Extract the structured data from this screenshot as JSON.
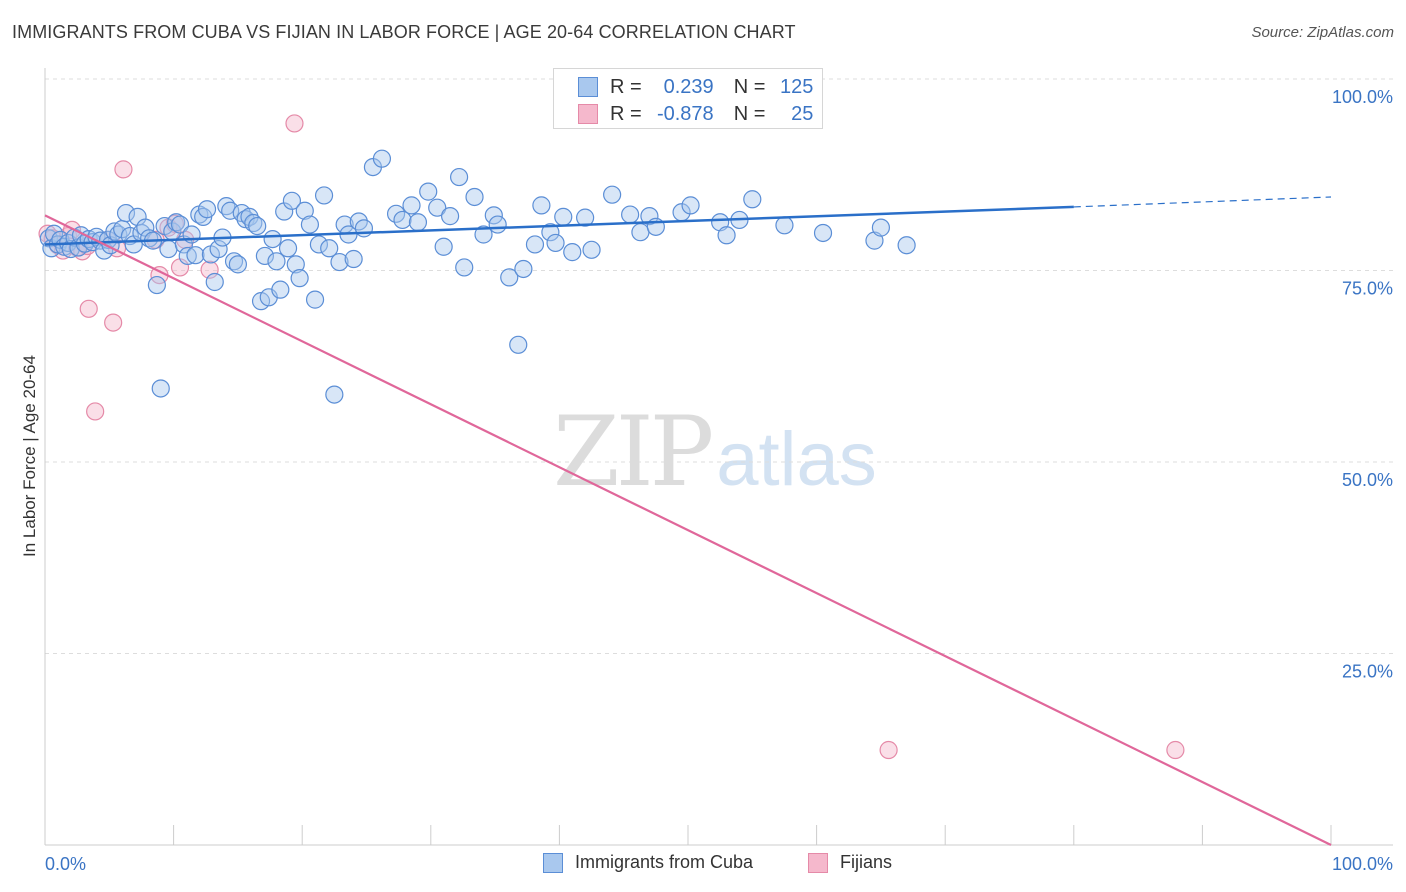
{
  "title": "IMMIGRANTS FROM CUBA VS FIJIAN IN LABOR FORCE | AGE 20-64 CORRELATION CHART",
  "source": "Source: ZipAtlas.com",
  "watermark": {
    "zip": "ZIP",
    "atlas": "atlas"
  },
  "colors": {
    "blue_fill": "#a9c8ee",
    "blue_stroke": "#5b8ed6",
    "blue_line": "#2a6fc9",
    "pink_fill": "#f5b8cc",
    "pink_stroke": "#e58aa8",
    "pink_line": "#e0679a",
    "tick_label": "#3a74c4",
    "grid": "#dddddd"
  },
  "legend": {
    "rows": [
      {
        "r_label": "R =",
        "r_value": "0.239",
        "n_label": "N =",
        "n_value": "125"
      },
      {
        "r_label": "R =",
        "r_value": "-0.878",
        "n_label": "N =",
        "n_value": "25"
      }
    ]
  },
  "bottom_legend": {
    "items": [
      {
        "label": "Immigrants from Cuba"
      },
      {
        "label": "Fijians"
      }
    ]
  },
  "chart_data": {
    "type": "scatter",
    "title": "IMMIGRANTS FROM CUBA VS FIJIAN IN LABOR FORCE | AGE 20-64 CORRELATION CHART",
    "xlabel": "",
    "ylabel": "In Labor Force | Age 20-64",
    "xlim": [
      0,
      100
    ],
    "ylim": [
      0,
      100
    ],
    "x_tick_labels": [
      {
        "value": 0,
        "label": "0.0%"
      },
      {
        "value": 100,
        "label": "100.0%"
      }
    ],
    "y_tick_labels": [
      {
        "value": 100,
        "label": "100.0%"
      },
      {
        "value": 75,
        "label": "75.0%"
      },
      {
        "value": 50,
        "label": "50.0%"
      },
      {
        "value": 25,
        "label": "25.0%"
      }
    ],
    "y_gridlines": [
      100,
      75,
      50,
      25
    ],
    "x_minor_ticks": [
      10,
      20,
      30,
      40,
      50,
      60,
      70,
      80,
      90,
      100
    ],
    "series": [
      {
        "name": "Immigrants from Cuba",
        "R": 0.239,
        "N": 125,
        "trend": {
          "x0": 0,
          "y0": 78.4,
          "x1": 80,
          "y1": 83.3,
          "dash_to_x": 100,
          "dash_to_y": 84.6
        },
        "points": [
          [
            0.3,
            79.2
          ],
          [
            0.5,
            77.9
          ],
          [
            0.7,
            79.8
          ],
          [
            1.0,
            78.4
          ],
          [
            1.2,
            79.0
          ],
          [
            1.5,
            78.1
          ],
          [
            1.8,
            78.6
          ],
          [
            2.0,
            77.8
          ],
          [
            2.3,
            79.3
          ],
          [
            2.6,
            78.0
          ],
          [
            2.8,
            79.6
          ],
          [
            3.1,
            78.5
          ],
          [
            3.4,
            79.1
          ],
          [
            3.7,
            78.7
          ],
          [
            4.0,
            79.4
          ],
          [
            4.3,
            78.9
          ],
          [
            4.6,
            77.6
          ],
          [
            4.9,
            79.0
          ],
          [
            5.1,
            78.3
          ],
          [
            5.4,
            80.1
          ],
          [
            5.7,
            79.7
          ],
          [
            6.0,
            80.4
          ],
          [
            6.3,
            82.5
          ],
          [
            6.6,
            79.5
          ],
          [
            6.9,
            78.4
          ],
          [
            7.2,
            82.0
          ],
          [
            7.5,
            79.9
          ],
          [
            7.8,
            80.6
          ],
          [
            8.1,
            79.2
          ],
          [
            8.4,
            78.9
          ],
          [
            8.7,
            73.1
          ],
          [
            9.0,
            59.6
          ],
          [
            9.3,
            80.8
          ],
          [
            9.6,
            77.8
          ],
          [
            9.9,
            80.1
          ],
          [
            10.2,
            81.3
          ],
          [
            10.5,
            81.0
          ],
          [
            10.8,
            78.4
          ],
          [
            11.1,
            76.9
          ],
          [
            11.4,
            79.7
          ],
          [
            11.7,
            77.0
          ],
          [
            12.0,
            82.3
          ],
          [
            12.3,
            82.0
          ],
          [
            12.6,
            83.0
          ],
          [
            12.9,
            77.1
          ],
          [
            13.2,
            73.5
          ],
          [
            13.5,
            77.8
          ],
          [
            13.8,
            79.3
          ],
          [
            14.1,
            83.4
          ],
          [
            14.4,
            82.8
          ],
          [
            14.7,
            76.2
          ],
          [
            15.0,
            75.8
          ],
          [
            15.3,
            82.5
          ],
          [
            15.6,
            81.7
          ],
          [
            15.9,
            82.0
          ],
          [
            16.2,
            81.2
          ],
          [
            16.5,
            80.8
          ],
          [
            16.8,
            71.0
          ],
          [
            17.1,
            76.9
          ],
          [
            17.4,
            71.5
          ],
          [
            17.7,
            79.1
          ],
          [
            18.0,
            76.2
          ],
          [
            18.3,
            72.5
          ],
          [
            18.6,
            82.7
          ],
          [
            18.9,
            77.9
          ],
          [
            19.2,
            84.1
          ],
          [
            19.5,
            75.8
          ],
          [
            19.8,
            74.0
          ],
          [
            20.2,
            82.8
          ],
          [
            20.6,
            81.0
          ],
          [
            21.0,
            71.2
          ],
          [
            21.3,
            78.4
          ],
          [
            21.7,
            84.8
          ],
          [
            22.1,
            77.9
          ],
          [
            22.5,
            58.8
          ],
          [
            22.9,
            76.1
          ],
          [
            23.3,
            81.0
          ],
          [
            23.6,
            79.7
          ],
          [
            24.0,
            76.5
          ],
          [
            24.4,
            81.4
          ],
          [
            24.8,
            80.5
          ],
          [
            25.5,
            88.5
          ],
          [
            26.2,
            89.6
          ],
          [
            27.3,
            82.4
          ],
          [
            27.8,
            81.6
          ],
          [
            28.5,
            83.5
          ],
          [
            29.0,
            81.3
          ],
          [
            29.8,
            85.3
          ],
          [
            30.5,
            83.2
          ],
          [
            31.0,
            78.1
          ],
          [
            31.5,
            82.1
          ],
          [
            32.2,
            87.2
          ],
          [
            32.6,
            75.4
          ],
          [
            33.4,
            84.6
          ],
          [
            34.1,
            79.7
          ],
          [
            34.9,
            82.2
          ],
          [
            35.2,
            81.0
          ],
          [
            36.1,
            74.1
          ],
          [
            36.8,
            65.3
          ],
          [
            37.2,
            75.2
          ],
          [
            38.1,
            78.4
          ],
          [
            38.6,
            83.5
          ],
          [
            39.3,
            80.0
          ],
          [
            39.7,
            78.6
          ],
          [
            40.3,
            82.0
          ],
          [
            41.0,
            77.4
          ],
          [
            42.0,
            81.9
          ],
          [
            42.5,
            77.7
          ],
          [
            44.1,
            84.9
          ],
          [
            45.5,
            82.3
          ],
          [
            46.3,
            80.0
          ],
          [
            47.0,
            82.1
          ],
          [
            47.5,
            80.7
          ],
          [
            49.5,
            82.6
          ],
          [
            50.2,
            83.5
          ],
          [
            52.5,
            81.3
          ],
          [
            53.0,
            79.6
          ],
          [
            54.0,
            81.6
          ],
          [
            55.0,
            84.3
          ],
          [
            57.5,
            80.9
          ],
          [
            60.5,
            79.9
          ],
          [
            64.5,
            78.9
          ],
          [
            65.0,
            80.6
          ],
          [
            67.0,
            78.3
          ]
        ]
      },
      {
        "name": "Fijians",
        "R": -0.878,
        "N": 25,
        "trend": {
          "x0": 0,
          "y0": 82.2,
          "x1": 100,
          "y1": 0
        },
        "points": [
          [
            0.2,
            79.8
          ],
          [
            0.6,
            79.2
          ],
          [
            1.0,
            78.3
          ],
          [
            1.4,
            77.6
          ],
          [
            1.8,
            79.5
          ],
          [
            2.1,
            80.3
          ],
          [
            2.5,
            78.0
          ],
          [
            2.9,
            77.5
          ],
          [
            3.3,
            78.2
          ],
          [
            3.4,
            70.0
          ],
          [
            3.9,
            56.6
          ],
          [
            4.9,
            79.0
          ],
          [
            5.3,
            68.2
          ],
          [
            5.6,
            77.9
          ],
          [
            6.1,
            88.2
          ],
          [
            8.6,
            79.0
          ],
          [
            8.9,
            74.4
          ],
          [
            9.6,
            80.6
          ],
          [
            10.1,
            81.1
          ],
          [
            10.5,
            75.4
          ],
          [
            10.9,
            79.0
          ],
          [
            12.8,
            75.1
          ],
          [
            19.4,
            94.2
          ],
          [
            65.6,
            12.4
          ],
          [
            87.9,
            12.4
          ]
        ]
      }
    ]
  }
}
